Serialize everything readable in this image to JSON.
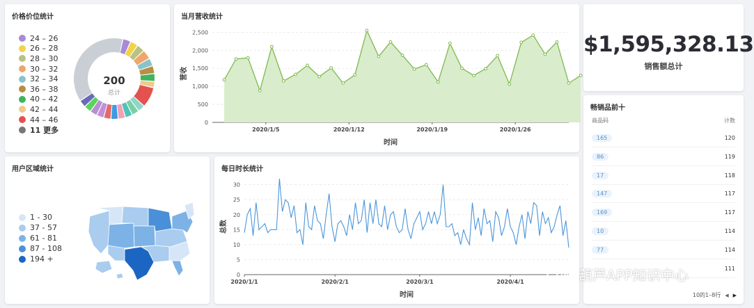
{
  "price_card": {
    "title": "价格价位统计",
    "center_value": "200",
    "center_label": "总计",
    "legend": [
      {
        "label": "24 – 26",
        "color": "#a98ad4"
      },
      {
        "label": "26 – 28",
        "color": "#f2d24b"
      },
      {
        "label": "28 – 30",
        "color": "#b8c283"
      },
      {
        "label": "30 – 32",
        "color": "#f0a56d"
      },
      {
        "label": "32 – 34",
        "color": "#88c3cc"
      },
      {
        "label": "36 – 38",
        "color": "#b88e44"
      },
      {
        "label": "40 – 42",
        "color": "#3fb45e"
      },
      {
        "label": "42 – 44",
        "color": "#f0c98b"
      },
      {
        "label": "44 – 46",
        "color": "#e3524f"
      },
      {
        "label": "11 更多",
        "color": "#777777"
      }
    ]
  },
  "revenue_card": {
    "title": "当月营收统计"
  },
  "total_card": {
    "value": "$1,595,328.13",
    "label": "销售额总计"
  },
  "bestseller_card": {
    "title": "畅销品前十",
    "col_product": "商品码",
    "col_count": "计数",
    "rows": [
      {
        "product": "165",
        "count": "120"
      },
      {
        "product": "86",
        "count": "119"
      },
      {
        "product": "17",
        "count": "118"
      },
      {
        "product": "147",
        "count": "117"
      },
      {
        "product": "169",
        "count": "117"
      },
      {
        "product": "10",
        "count": "114"
      },
      {
        "product": "77",
        "count": "114"
      },
      {
        "product": "",
        "count": "111"
      }
    ],
    "footer_text": "10的1–8行",
    "prev_icon": "chevron-left-icon",
    "next_icon": "chevron-right-icon"
  },
  "region_card": {
    "title": "用户区域统计",
    "legend": [
      {
        "label": "1 - 30",
        "color": "#d6e6f7"
      },
      {
        "label": "37 - 57",
        "color": "#a9ccef"
      },
      {
        "label": "61 - 81",
        "color": "#7cb2e6"
      },
      {
        "label": "87 - 108",
        "color": "#4a90d9"
      },
      {
        "label": "194 +",
        "color": "#1b66c2"
      }
    ]
  },
  "daily_card": {
    "title": "每日时长统计"
  },
  "watermark": {
    "text": "葫芦APP知识中心",
    "icon": "wechat-icon"
  },
  "chart_data": [
    {
      "type": "pie",
      "title": "价格价位统计",
      "center_text": "200",
      "center_subtext": "总计",
      "categories": [
        "24 – 26",
        "26 – 28",
        "28 – 30",
        "30 – 32",
        "32 – 34",
        "36 – 38",
        "40 – 42",
        "42 – 44",
        "44 – 46",
        "11 更多"
      ],
      "values": [
        2.5,
        2.5,
        2.5,
        3,
        2.5,
        2.5,
        2.5,
        2,
        6.5,
        30
      ]
    },
    {
      "type": "area",
      "title": "当月营收统计",
      "xlabel": "时间",
      "ylabel": "营收",
      "ylim": [
        0,
        2700
      ],
      "yticks": [
        0,
        500,
        1000,
        1500,
        2000,
        2500
      ],
      "ytick_labels": [
        "0",
        "500",
        "1,000",
        "1,500",
        "2,000",
        "2,500"
      ],
      "xtick_labels": [
        "2020/1/5",
        "2020/1/12",
        "2020/1/19",
        "2020/1/26"
      ],
      "xtick_positions": [
        4.5,
        11.5,
        18.5,
        25.5
      ],
      "x_range": [
        0,
        30
      ],
      "x": [
        1,
        2,
        3,
        4,
        5,
        6,
        7,
        8,
        9,
        10,
        11,
        12,
        13,
        14,
        15,
        16,
        17,
        18,
        19,
        20,
        21,
        22,
        23,
        24,
        25,
        26,
        27,
        28,
        29,
        30,
        31
      ],
      "values": [
        1180,
        1760,
        1790,
        880,
        2100,
        1150,
        1330,
        1580,
        1270,
        1510,
        1090,
        1320,
        2550,
        1830,
        2230,
        1860,
        1480,
        1600,
        1120,
        2190,
        1500,
        1300,
        1490,
        1850,
        1060,
        2220,
        2420,
        1890,
        2230,
        1090,
        1300
      ],
      "color": "#7fb94f",
      "fill": "#d9eccc",
      "grid": true
    },
    {
      "type": "line",
      "title": "每日时长统计",
      "xlabel": "时间",
      "ylabel": "总数",
      "ylim": [
        0,
        32
      ],
      "yticks": [
        0,
        5,
        10,
        15,
        20,
        25,
        30
      ],
      "xtick_labels": [
        "2020/1/1",
        "2020/2/1",
        "2020/3/1",
        "2020/4/1"
      ],
      "xtick_positions": [
        1,
        32,
        61,
        92
      ],
      "x_range": [
        1,
        112
      ],
      "values": [
        14,
        20,
        22,
        13,
        24,
        15,
        16,
        17,
        14,
        15,
        15,
        15,
        32,
        21,
        25,
        24,
        19,
        23,
        14,
        15,
        10,
        24,
        16,
        15,
        23,
        18,
        17,
        12,
        20,
        27,
        16,
        11,
        17,
        18,
        16,
        13,
        20,
        15,
        24,
        17,
        18,
        25,
        14,
        24,
        17,
        25,
        17,
        16,
        23,
        15,
        20,
        21,
        16,
        14,
        15,
        22,
        15,
        12,
        17,
        19,
        21,
        15,
        17,
        21,
        17,
        21,
        17,
        20,
        30,
        16,
        16,
        17,
        13,
        14,
        10,
        15,
        12,
        10,
        24,
        15,
        19,
        13,
        22,
        17,
        18,
        11,
        21,
        19,
        13,
        16,
        22,
        16,
        14,
        10,
        16,
        20,
        12,
        21,
        17,
        24,
        23,
        13,
        21,
        17,
        19,
        14,
        16,
        20,
        23,
        13,
        18,
        9
      ]
    }
  ]
}
